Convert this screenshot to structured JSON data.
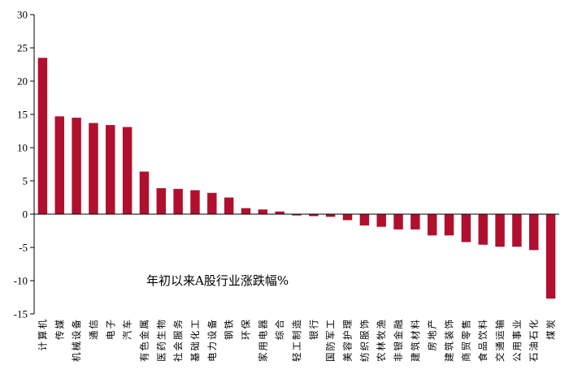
{
  "chart_data": {
    "type": "bar",
    "title": "",
    "xlabel": "",
    "ylabel": "",
    "annotation": "年初以来A股行业涨跌幅%",
    "ylim": [
      -15,
      30
    ],
    "yticks": [
      30,
      25,
      20,
      15,
      10,
      5,
      0,
      -5,
      -10,
      -15
    ],
    "grid": false,
    "bar_color": "#b0102e",
    "categories": [
      "计算机",
      "传媒",
      "机械设备",
      "通信",
      "电子",
      "汽车",
      "有色金属",
      "医药生物",
      "社会服务",
      "基础化工",
      "电力设备",
      "钢铁",
      "环保",
      "家用电器",
      "综合",
      "轻工制造",
      "银行",
      "国防军工",
      "美容护理",
      "纺织服饰",
      "农林牧渔",
      "非银金融",
      "建筑材料",
      "房地产",
      "建筑装饰",
      "商贸零售",
      "食品饮料",
      "交通运输",
      "公用事业",
      "石油石化",
      "煤炭"
    ],
    "values": [
      23.5,
      14.7,
      14.5,
      13.7,
      13.4,
      13.1,
      6.4,
      3.9,
      3.8,
      3.6,
      3.2,
      2.5,
      0.9,
      0.7,
      0.4,
      -0.2,
      -0.3,
      -0.4,
      -0.9,
      -1.7,
      -1.9,
      -2.3,
      -2.3,
      -3.2,
      -3.2,
      -4.2,
      -4.6,
      -4.9,
      -4.9,
      -5.4,
      -12.7
    ]
  }
}
